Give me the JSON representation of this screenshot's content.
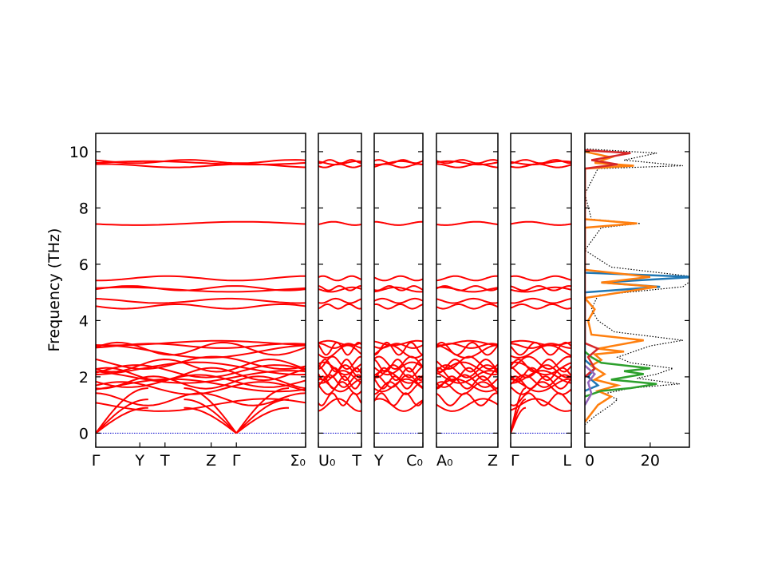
{
  "chart_data": {
    "type": "line",
    "title": "",
    "ylabel": "Frequency (THz)",
    "ylim": [
      -0.5,
      10.65
    ],
    "y_ticks": [
      0,
      2,
      4,
      6,
      8,
      10
    ],
    "band_color": "#ff0000",
    "zero_line_color": "#0000cc",
    "flat_bands": [
      9.6,
      9.5,
      9.65,
      7.45,
      5.5,
      5.15,
      5.1,
      4.7,
      4.5,
      3.2,
      3.1,
      3.0,
      2.9,
      2.5,
      2.4,
      2.3,
      2.2,
      2.1,
      2.0,
      1.85,
      1.8,
      1.7,
      1.6,
      1.2,
      1.0
    ],
    "panels": [
      {
        "name": "Γ-Y-T-Z-Γ-Σ0",
        "tick_labels": [
          "Γ",
          "Y",
          "T",
          "Z",
          "Γ",
          "Σ₀"
        ],
        "tick_pos": [
          0,
          0.21,
          0.33,
          0.55,
          0.67,
          1
        ],
        "gamma_pos": [
          0,
          0.67
        ]
      },
      {
        "name": "U0-T",
        "tick_labels": [
          "U₀",
          "T"
        ],
        "tick_pos": [
          0,
          1
        ],
        "gamma_pos": []
      },
      {
        "name": "Y-C0",
        "tick_labels": [
          "Y",
          "C₀"
        ],
        "tick_pos": [
          0,
          1
        ],
        "gamma_pos": []
      },
      {
        "name": "A0-Z",
        "tick_labels": [
          "A₀",
          "Z"
        ],
        "tick_pos": [
          0,
          1
        ],
        "gamma_pos": []
      },
      {
        "name": "Γ-L",
        "tick_labels": [
          "Γ",
          "L"
        ],
        "tick_pos": [
          0,
          1
        ],
        "gamma_pos": [
          0
        ]
      }
    ],
    "dos": {
      "xlabel": "",
      "x_ticks": [
        0,
        20
      ],
      "xlim": [
        0,
        32
      ],
      "series": [
        {
          "color": "#000000",
          "style": "dotted",
          "points": [
            [
              0,
              0.3
            ],
            [
              3,
              0.6
            ],
            [
              8,
              1.0
            ],
            [
              10,
              1.2
            ],
            [
              6,
              1.4
            ],
            [
              14,
              1.6
            ],
            [
              29,
              1.75
            ],
            [
              16,
              1.95
            ],
            [
              22,
              2.1
            ],
            [
              27,
              2.3
            ],
            [
              14,
              2.5
            ],
            [
              10,
              2.7
            ],
            [
              15,
              2.9
            ],
            [
              20,
              3.1
            ],
            [
              30,
              3.3
            ],
            [
              9,
              3.6
            ],
            [
              4,
              4.0
            ],
            [
              2,
              4.4
            ],
            [
              4,
              4.9
            ],
            [
              30,
              5.2
            ],
            [
              34,
              5.55
            ],
            [
              8,
              5.9
            ],
            [
              0,
              6.5
            ],
            [
              5,
              7.3
            ],
            [
              17,
              7.45
            ],
            [
              2,
              7.6
            ],
            [
              0,
              8.5
            ],
            [
              4,
              9.4
            ],
            [
              30,
              9.5
            ],
            [
              12,
              9.7
            ],
            [
              22,
              9.95
            ],
            [
              0,
              10.1
            ]
          ]
        },
        {
          "color": "#1f77b4",
          "style": "solid",
          "points": [
            [
              0,
              1.5
            ],
            [
              4,
              1.7
            ],
            [
              1,
              2.0
            ],
            [
              3,
              2.3
            ],
            [
              0,
              2.6
            ],
            [
              0,
              5.0
            ],
            [
              23,
              5.2
            ],
            [
              5,
              5.35
            ],
            [
              34,
              5.55
            ],
            [
              0,
              5.7
            ]
          ]
        },
        {
          "color": "#ff7f0e",
          "style": "solid",
          "points": [
            [
              0,
              0.4
            ],
            [
              2,
              0.7
            ],
            [
              4,
              1.0
            ],
            [
              8,
              1.3
            ],
            [
              4,
              1.5
            ],
            [
              10,
              1.7
            ],
            [
              3,
              1.9
            ],
            [
              6,
              2.1
            ],
            [
              2,
              2.4
            ],
            [
              5,
              2.6
            ],
            [
              3,
              2.8
            ],
            [
              12,
              2.9
            ],
            [
              4,
              3.0
            ],
            [
              18,
              3.3
            ],
            [
              2,
              3.5
            ],
            [
              1,
              4.0
            ],
            [
              3,
              4.4
            ],
            [
              0,
              4.8
            ],
            [
              22,
              5.2
            ],
            [
              5,
              5.35
            ],
            [
              20,
              5.55
            ],
            [
              0,
              5.8
            ],
            [
              0,
              7.3
            ],
            [
              16,
              7.45
            ],
            [
              0,
              7.6
            ],
            [
              0,
              9.4
            ],
            [
              15,
              9.5
            ],
            [
              3,
              9.6
            ],
            [
              8,
              9.8
            ],
            [
              0,
              10.0
            ]
          ]
        },
        {
          "color": "#2ca02c",
          "style": "solid",
          "points": [
            [
              0,
              1.3
            ],
            [
              5,
              1.5
            ],
            [
              14,
              1.6
            ],
            [
              22,
              1.75
            ],
            [
              8,
              1.9
            ],
            [
              18,
              2.1
            ],
            [
              12,
              2.2
            ],
            [
              20,
              2.3
            ],
            [
              5,
              2.5
            ],
            [
              2,
              2.7
            ],
            [
              0,
              2.9
            ]
          ]
        },
        {
          "color": "#d62728",
          "style": "solid",
          "points": [
            [
              0,
              2.0
            ],
            [
              3,
              2.3
            ],
            [
              1,
              2.7
            ],
            [
              4,
              3.0
            ],
            [
              0,
              3.2
            ],
            [
              0,
              9.4
            ],
            [
              10,
              9.55
            ],
            [
              2,
              9.7
            ],
            [
              14,
              9.95
            ],
            [
              0,
              10.05
            ]
          ]
        },
        {
          "color": "#9467bd",
          "style": "solid",
          "points": [
            [
              0,
              1.0
            ],
            [
              2,
              1.4
            ],
            [
              1,
              1.8
            ],
            [
              3,
              2.1
            ],
            [
              0,
              2.4
            ]
          ]
        }
      ]
    }
  }
}
